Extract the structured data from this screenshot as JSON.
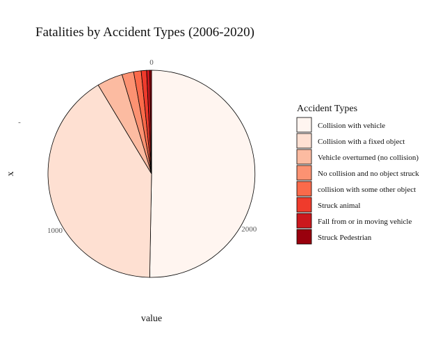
{
  "chart_data": {
    "type": "pie",
    "title": "Fatalities by Accident Types (2006-2020)",
    "xlabel": "value",
    "ylabel": "x",
    "y_tick": "-",
    "legend_title": "Accident Types",
    "legend_position": "right",
    "categories": [
      "Collision with vehicle",
      "Collision with a fixed object",
      "Vehicle overturned (no collision)",
      "No collision and no object struck",
      "collision with some other object",
      "Struck animal",
      "Fall from or in moving vehicle",
      "Struck Pedestrian"
    ],
    "values": [
      1505,
      1230,
      120,
      55,
      35,
      25,
      15,
      8
    ],
    "colors": [
      "#FFF5F0",
      "#FEE0D2",
      "#FCBBA1",
      "#FC9272",
      "#FB6A4A",
      "#EF3B2C",
      "#CB181D",
      "#99000D"
    ],
    "ticks": [
      0,
      1000,
      2000
    ],
    "tick_labels": [
      "0",
      "1000",
      "2000"
    ],
    "grid": false
  }
}
